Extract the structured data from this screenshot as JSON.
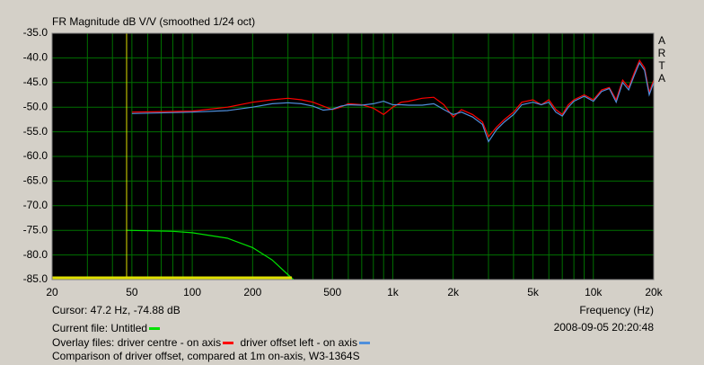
{
  "chart_data": {
    "type": "line",
    "title": "FR Magnitude dB V/V (smoothed 1/24 oct)",
    "x_label": "Frequency (Hz)",
    "watermark": [
      "A",
      "R",
      "T",
      "A"
    ],
    "log_x": true,
    "grid": true,
    "xlim": [
      20,
      20000
    ],
    "ylim": [
      -85,
      -35
    ],
    "xticks": [
      20,
      50,
      100,
      200,
      500,
      {
        "value": 1000,
        "label": "1k"
      },
      {
        "value": 2000,
        "label": "2k"
      },
      {
        "value": 5000,
        "label": "5k"
      },
      {
        "value": 10000,
        "label": "10k"
      },
      {
        "value": 20000,
        "label": "20k"
      }
    ],
    "xgrid_minor": [
      30,
      40,
      60,
      70,
      80,
      90,
      300,
      400,
      600,
      700,
      800,
      900,
      3000,
      4000,
      6000,
      7000,
      8000,
      9000
    ],
    "yticks": [
      {
        "value": -35,
        "label": "-35.0"
      },
      {
        "value": -40,
        "label": "-40.0"
      },
      {
        "value": -45,
        "label": "-45.0"
      },
      {
        "value": -50,
        "label": "-50.0"
      },
      {
        "value": -55,
        "label": "-55.0"
      },
      {
        "value": -60,
        "label": "-60.0"
      },
      {
        "value": -65,
        "label": "-65.0"
      },
      {
        "value": -70,
        "label": "-70.0"
      },
      {
        "value": -75,
        "label": "-75.0"
      },
      {
        "value": -80,
        "label": "-80.0"
      },
      {
        "value": -85,
        "label": "-85.0"
      }
    ],
    "cursor_text": "Cursor: 47.2 Hz, -74.88 dB",
    "current_label": "Current file:",
    "overlay_label": "Overlay files:",
    "timestamp": "2008-09-05  20:20:48",
    "comment": "Comparison of driver offset, compared at 1m on-axis, W3-1364S",
    "series": [
      {
        "name": "Untitled",
        "color": "#00e000",
        "x": [
          47,
          80,
          100,
          150,
          200,
          250,
          300,
          320
        ],
        "values": [
          -75,
          -75.2,
          -75.5,
          -76.6,
          -78.5,
          -81,
          -84,
          -85
        ]
      },
      {
        "name": "driver centre - on axis",
        "color": "#ff0000",
        "x": [
          50,
          100,
          150,
          200,
          250,
          300,
          350,
          400,
          450,
          500,
          550,
          600,
          700,
          800,
          900,
          1000,
          1100,
          1200,
          1400,
          1600,
          1800,
          2000,
          2200,
          2500,
          2800,
          3000,
          3300,
          3600,
          4000,
          4400,
          5000,
          5500,
          6000,
          6500,
          7000,
          7500,
          8000,
          9000,
          10000,
          11000,
          12000,
          13000,
          14000,
          15000,
          16000,
          17000,
          18000,
          19000,
          20000
        ],
        "values": [
          -51,
          -50.8,
          -50,
          -49,
          -48.5,
          -48.2,
          -48.5,
          -49,
          -49.8,
          -50.5,
          -50,
          -49.3,
          -49.5,
          -50.2,
          -51.5,
          -50,
          -49,
          -48.8,
          -48.2,
          -48,
          -49.5,
          -52,
          -50.5,
          -51.5,
          -53,
          -56,
          -54,
          -52.5,
          -51,
          -49,
          -48.5,
          -49.5,
          -48.5,
          -50.5,
          -51.5,
          -49.5,
          -48.5,
          -47.5,
          -48.5,
          -46.5,
          -46,
          -48.5,
          -44.5,
          -46,
          -43,
          -40.5,
          -42,
          -47,
          -44.5
        ]
      },
      {
        "name": "driver offset left - on axis",
        "color": "#4f8fdc",
        "x": [
          50,
          100,
          150,
          200,
          250,
          300,
          350,
          400,
          450,
          500,
          550,
          600,
          700,
          800,
          900,
          1000,
          1100,
          1200,
          1400,
          1600,
          1800,
          2000,
          2200,
          2500,
          2800,
          3000,
          3300,
          3600,
          4000,
          4400,
          5000,
          5500,
          6000,
          6500,
          7000,
          7500,
          8000,
          9000,
          10000,
          11000,
          12000,
          13000,
          14000,
          15000,
          16000,
          17000,
          18000,
          19000,
          20000
        ],
        "values": [
          -51.3,
          -51,
          -50.7,
          -50,
          -49.3,
          -49.1,
          -49.3,
          -49.8,
          -50.6,
          -50.4,
          -49.8,
          -49.5,
          -49.6,
          -49.3,
          -48.8,
          -49.5,
          -49.5,
          -49.6,
          -49.6,
          -49.3,
          -50.5,
          -51.5,
          -51,
          -52,
          -53.5,
          -57,
          -54.5,
          -53,
          -51.5,
          -49.5,
          -49,
          -49.5,
          -49,
          -51,
          -51.8,
          -50,
          -48.8,
          -47.8,
          -48.8,
          -46.8,
          -46.2,
          -49,
          -45,
          -46.5,
          -43.5,
          -41,
          -42.5,
          -47.5,
          -45
        ]
      }
    ]
  }
}
